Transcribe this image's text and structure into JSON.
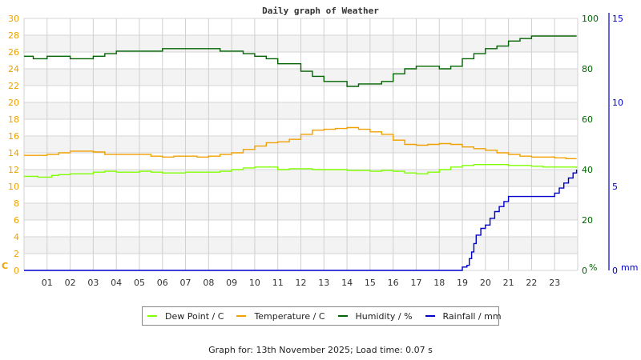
{
  "chart_data": {
    "type": "line",
    "title": "Daily graph of Weather",
    "x_ticks": [
      "01",
      "02",
      "03",
      "04",
      "05",
      "06",
      "07",
      "08",
      "09",
      "10",
      "11",
      "12",
      "13",
      "14",
      "15",
      "16",
      "17",
      "18",
      "19",
      "20",
      "21",
      "22",
      "23"
    ],
    "xlabel": "",
    "axes": {
      "temperature": {
        "label": "C",
        "ticks": [
          0,
          2,
          4,
          6,
          8,
          10,
          12,
          14,
          16,
          18,
          20,
          22,
          24,
          26,
          28,
          30
        ],
        "range": [
          0,
          30
        ],
        "color": "#f0a000"
      },
      "humidity": {
        "label": "%",
        "ticks": [
          0,
          20,
          40,
          60,
          80,
          100
        ],
        "range": [
          0,
          100
        ],
        "color": "#006400"
      },
      "rainfall": {
        "label": "mm",
        "ticks": [
          0,
          5,
          10,
          15
        ],
        "range": [
          0,
          15
        ],
        "color": "#0000cc"
      }
    },
    "grid": true,
    "legend_position": "bottom",
    "series": [
      {
        "name": "Dew Point / C",
        "axis": "temperature",
        "color": "#7fff00",
        "x": [
          0,
          0.4,
          0.6,
          1.2,
          1.5,
          2,
          2.5,
          3,
          3.5,
          4,
          4.5,
          5,
          5.5,
          6,
          6.5,
          7,
          7.5,
          8,
          8.5,
          9,
          9.5,
          10,
          10.5,
          11,
          11.5,
          12,
          12.5,
          13,
          13.5,
          14,
          14.5,
          15,
          15.5,
          16,
          16.5,
          17,
          17.5,
          18,
          18.5,
          19,
          19.5,
          20,
          20.5,
          21,
          21.5,
          22,
          22.5,
          23,
          23.5,
          23.95
        ],
        "values": [
          11.2,
          11.2,
          11.1,
          11.3,
          11.4,
          11.5,
          11.5,
          11.7,
          11.8,
          11.7,
          11.7,
          11.8,
          11.7,
          11.6,
          11.6,
          11.7,
          11.7,
          11.7,
          11.8,
          12.0,
          12.2,
          12.3,
          12.3,
          12.0,
          12.1,
          12.1,
          12.0,
          12.0,
          12.0,
          11.9,
          11.9,
          11.8,
          11.9,
          11.8,
          11.6,
          11.5,
          11.7,
          12.0,
          12.3,
          12.5,
          12.6,
          12.6,
          12.6,
          12.5,
          12.5,
          12.4,
          12.3,
          12.3,
          12.3,
          12.2
        ]
      },
      {
        "name": "Temperature / C",
        "axis": "temperature",
        "color": "#f0a000",
        "x": [
          0,
          0.5,
          1,
          1.5,
          2,
          2.5,
          3,
          3.5,
          4,
          4.5,
          5,
          5.5,
          6,
          6.5,
          7,
          7.5,
          8,
          8.5,
          9,
          9.5,
          10,
          10.5,
          11,
          11.5,
          12,
          12.5,
          13,
          13.5,
          14,
          14.5,
          15,
          15.5,
          16,
          16.5,
          17,
          17.5,
          18,
          18.5,
          19,
          19.5,
          20,
          20.5,
          21,
          21.5,
          22,
          22.5,
          23,
          23.5,
          23.95
        ],
        "values": [
          13.7,
          13.7,
          13.8,
          14.0,
          14.2,
          14.2,
          14.1,
          13.8,
          13.8,
          13.8,
          13.8,
          13.6,
          13.5,
          13.6,
          13.6,
          13.5,
          13.6,
          13.8,
          14.0,
          14.4,
          14.8,
          15.2,
          15.3,
          15.6,
          16.2,
          16.7,
          16.8,
          16.9,
          17.0,
          16.8,
          16.5,
          16.2,
          15.5,
          15.0,
          14.9,
          15.0,
          15.1,
          15.0,
          14.7,
          14.5,
          14.3,
          14.0,
          13.8,
          13.6,
          13.5,
          13.5,
          13.4,
          13.3,
          13.3
        ]
      },
      {
        "name": "Humidity / %",
        "axis": "humidity",
        "color": "#006400",
        "x": [
          0,
          0.4,
          1,
          1.5,
          2,
          2.5,
          3,
          3.5,
          4,
          4.5,
          5,
          5.5,
          6,
          7,
          8,
          8.5,
          9,
          9.5,
          10,
          10.5,
          11,
          11.5,
          12,
          12.5,
          13,
          13.5,
          14,
          14.5,
          15,
          15.5,
          16,
          16.5,
          17,
          17.5,
          18,
          18.5,
          19,
          19.5,
          20,
          20.5,
          21,
          21.5,
          22,
          22.5,
          23,
          23.95
        ],
        "values": [
          85,
          84,
          85,
          85,
          84,
          84,
          85,
          86,
          87,
          87,
          87,
          87,
          88,
          88,
          88,
          87,
          87,
          86,
          85,
          84,
          82,
          82,
          79,
          77,
          75,
          75,
          73,
          74,
          74,
          75,
          78,
          80,
          81,
          81,
          80,
          81,
          84,
          86,
          88,
          89,
          91,
          92,
          93,
          93,
          93,
          93
        ]
      },
      {
        "name": "Rainfall / mm",
        "axis": "rainfall",
        "color": "#0000cc",
        "x": [
          0,
          18.9,
          19.0,
          19.2,
          19.3,
          19.4,
          19.5,
          19.6,
          19.8,
          20.0,
          20.2,
          20.4,
          20.6,
          20.8,
          21.0,
          22.8,
          23.0,
          23.2,
          23.4,
          23.6,
          23.8,
          23.95
        ],
        "values": [
          0,
          0,
          0.2,
          0.3,
          0.7,
          1.1,
          1.6,
          2.1,
          2.5,
          2.7,
          3.1,
          3.5,
          3.8,
          4.1,
          4.4,
          4.4,
          4.6,
          4.9,
          5.2,
          5.5,
          5.8,
          6.0
        ]
      }
    ]
  },
  "legend": {
    "items": [
      {
        "label": "Dew Point / C",
        "color": "#7fff00"
      },
      {
        "label": "Temperature / C",
        "color": "#f0a000"
      },
      {
        "label": "Humidity / %",
        "color": "#006400"
      },
      {
        "label": "Rainfall / mm",
        "color": "#0000cc"
      }
    ]
  },
  "footer": {
    "text": "Graph for: 13th November 2025; Load time: 0.07 s"
  }
}
